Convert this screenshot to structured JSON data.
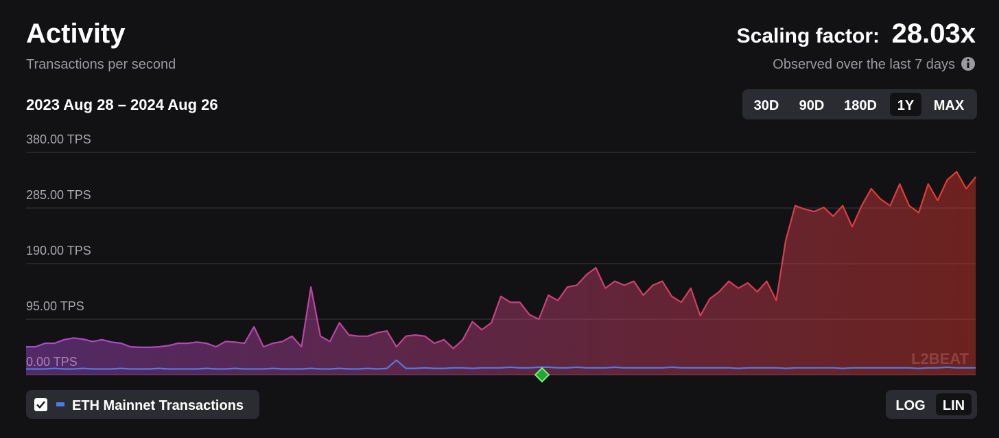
{
  "header": {
    "title": "Activity",
    "subtitle": "Transactions per second",
    "scaling_label": "Scaling factor:",
    "scaling_value": "28.03x",
    "note": "Observed over the last 7 days"
  },
  "controls": {
    "date_range": "2023 Aug 28 – 2024 Aug 26",
    "ranges": [
      "30D",
      "90D",
      "180D",
      "1Y",
      "MAX"
    ],
    "active_range": "1Y",
    "scales": [
      "LOG",
      "LIN"
    ],
    "active_scale": "LIN"
  },
  "watermark": "L2BEAT",
  "chart_data": {
    "type": "area",
    "ylim": [
      0,
      380
    ],
    "grid": true,
    "yticks": [
      {
        "value": 0,
        "label": "0.00 TPS"
      },
      {
        "value": 95,
        "label": "95.00 TPS"
      },
      {
        "value": 190,
        "label": "190.00 TPS"
      },
      {
        "value": 285,
        "label": "285.00 TPS"
      },
      {
        "value": 380,
        "label": "380.00 TPS"
      }
    ],
    "series": [
      {
        "gradient": [
          "#a94ad6",
          "#e8392a"
        ],
        "values": [
          48,
          48,
          54,
          54,
          60,
          63,
          61,
          57,
          60,
          56,
          54,
          48,
          47,
          47,
          48,
          50,
          54,
          54,
          56,
          54,
          48,
          57,
          56,
          54,
          82,
          48,
          54,
          57,
          66,
          48,
          150,
          66,
          57,
          89,
          68,
          66,
          66,
          72,
          75,
          48,
          66,
          68,
          66,
          54,
          60,
          45,
          60,
          91,
          77,
          89,
          134,
          124,
          124,
          103,
          95,
          136,
          127,
          150,
          153,
          171,
          183,
          148,
          160,
          153,
          160,
          136,
          153,
          160,
          134,
          124,
          148,
          101,
          130,
          142,
          160,
          148,
          157,
          142,
          160,
          127,
          230,
          289,
          283,
          279,
          286,
          271,
          289,
          253,
          289,
          318,
          300,
          289,
          326,
          289,
          277,
          326,
          298,
          333,
          347,
          318,
          338
        ]
      },
      {
        "name": "ETH Mainnet Transactions",
        "color": "#4f7be8",
        "visible": true,
        "values": [
          10,
          10,
          10,
          11,
          10,
          10,
          11,
          10,
          10,
          10,
          11,
          10,
          10,
          10,
          11,
          10,
          10,
          10,
          10,
          11,
          10,
          10,
          11,
          10,
          10,
          10,
          11,
          10,
          10,
          10,
          11,
          10,
          10,
          11,
          10,
          10,
          11,
          10,
          11,
          25,
          11,
          11,
          12,
          11,
          11,
          12,
          12,
          11,
          12,
          12,
          12,
          13,
          12,
          12,
          13,
          13,
          12,
          12,
          13,
          12,
          12,
          12,
          13,
          12,
          12,
          12,
          12,
          12,
          13,
          12,
          12,
          12,
          12,
          12,
          12,
          11,
          12,
          12,
          12,
          12,
          11,
          12,
          12,
          12,
          12,
          12,
          11,
          12,
          12,
          12,
          12,
          12,
          12,
          12,
          11,
          12,
          12,
          13,
          12,
          12,
          12
        ]
      }
    ]
  }
}
